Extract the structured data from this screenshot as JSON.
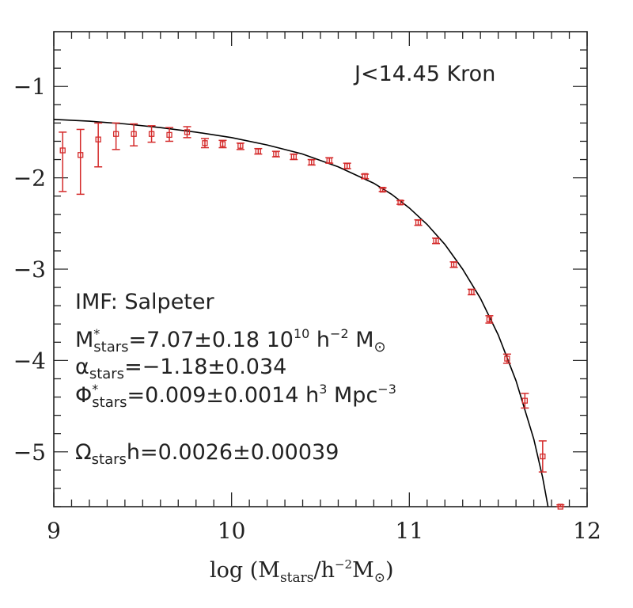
{
  "chart_data": {
    "type": "scatter",
    "title": "J<14.45 Kron",
    "xlim": [
      9,
      12
    ],
    "ylim": [
      -5.6,
      -0.4
    ],
    "x_ticks": [
      9,
      10,
      11,
      12
    ],
    "x_tick_labels": [
      "9",
      "10",
      "11",
      "12"
    ],
    "y_ticks": [
      -1,
      -2,
      -3,
      -4,
      -5
    ],
    "y_tick_labels": [
      "−1",
      "−2",
      "−3",
      "−4",
      "−5"
    ],
    "grid": false,
    "marker_color": "#d42a2a",
    "line_color": "#000000",
    "xlabel": {
      "prefix": "log (M",
      "sub": "stars",
      "mid": "/h",
      "sup": "−2",
      "mid2": "M",
      "sub2": "⊙",
      "suffix": ")"
    },
    "points": [
      {
        "x": 9.05,
        "y": -1.7,
        "lo": -2.15,
        "hi": -1.5
      },
      {
        "x": 9.15,
        "y": -1.75,
        "lo": -2.18,
        "hi": -1.47
      },
      {
        "x": 9.25,
        "y": -1.58,
        "lo": -1.88,
        "hi": -1.4
      },
      {
        "x": 9.35,
        "y": -1.52,
        "lo": -1.69,
        "hi": -1.4
      },
      {
        "x": 9.45,
        "y": -1.52,
        "lo": -1.65,
        "hi": -1.41
      },
      {
        "x": 9.55,
        "y": -1.52,
        "lo": -1.61,
        "hi": -1.43
      },
      {
        "x": 9.65,
        "y": -1.53,
        "lo": -1.6,
        "hi": -1.45
      },
      {
        "x": 9.75,
        "y": -1.5,
        "lo": -1.56,
        "hi": -1.44
      },
      {
        "x": 9.85,
        "y": -1.62,
        "lo": -1.67,
        "hi": -1.57
      },
      {
        "x": 9.95,
        "y": -1.63,
        "lo": -1.67,
        "hi": -1.59
      },
      {
        "x": 10.05,
        "y": -1.65,
        "lo": -1.69,
        "hi": -1.62
      },
      {
        "x": 10.15,
        "y": -1.71,
        "lo": -1.74,
        "hi": -1.68
      },
      {
        "x": 10.25,
        "y": -1.74,
        "lo": -1.77,
        "hi": -1.71
      },
      {
        "x": 10.35,
        "y": -1.77,
        "lo": -1.8,
        "hi": -1.74
      },
      {
        "x": 10.45,
        "y": -1.83,
        "lo": -1.86,
        "hi": -1.8
      },
      {
        "x": 10.55,
        "y": -1.81,
        "lo": -1.84,
        "hi": -1.78
      },
      {
        "x": 10.65,
        "y": -1.87,
        "lo": -1.9,
        "hi": -1.84
      },
      {
        "x": 10.75,
        "y": -1.98,
        "lo": -2.01,
        "hi": -1.96
      },
      {
        "x": 10.85,
        "y": -2.13,
        "lo": -2.15,
        "hi": -2.11
      },
      {
        "x": 10.95,
        "y": -2.27,
        "lo": -2.29,
        "hi": -2.25
      },
      {
        "x": 11.05,
        "y": -2.49,
        "lo": -2.52,
        "hi": -2.46
      },
      {
        "x": 11.15,
        "y": -2.69,
        "lo": -2.72,
        "hi": -2.66
      },
      {
        "x": 11.25,
        "y": -2.95,
        "lo": -2.98,
        "hi": -2.92
      },
      {
        "x": 11.35,
        "y": -3.25,
        "lo": -3.28,
        "hi": -3.22
      },
      {
        "x": 11.45,
        "y": -3.55,
        "lo": -3.59,
        "hi": -3.51
      },
      {
        "x": 11.55,
        "y": -3.98,
        "lo": -4.03,
        "hi": -3.93
      },
      {
        "x": 11.65,
        "y": -4.44,
        "lo": -4.52,
        "hi": -4.36
      },
      {
        "x": 11.75,
        "y": -5.05,
        "lo": -5.22,
        "hi": -4.88
      },
      {
        "x": 11.85,
        "y": -5.6,
        "lo": -5.6,
        "hi": -5.58
      }
    ],
    "fit_curve": {
      "x": [
        9.0,
        9.2,
        9.4,
        9.6,
        9.8,
        10.0,
        10.2,
        10.4,
        10.6,
        10.8,
        10.9,
        11.0,
        11.1,
        11.2,
        11.3,
        11.4,
        11.5,
        11.6,
        11.7,
        11.75,
        11.78
      ],
      "y": [
        -1.36,
        -1.38,
        -1.41,
        -1.45,
        -1.5,
        -1.56,
        -1.64,
        -1.74,
        -1.88,
        -2.06,
        -2.18,
        -2.33,
        -2.51,
        -2.73,
        -3.0,
        -3.32,
        -3.72,
        -4.22,
        -4.86,
        -5.28,
        -5.6
      ]
    }
  },
  "annotations": {
    "imf": "IMF: Salpeter",
    "mstar": {
      "sym": "M",
      "sup": "*",
      "sub": "stars",
      "text": "=7.07±0.18 10",
      "pow": "10",
      "unit1": " h",
      "unit1_sup": "−2",
      "unit2": " M",
      "unit2_sub": "⊙"
    },
    "alpha": {
      "sym": "α",
      "sub": "stars",
      "text": "=−1.18±0.034"
    },
    "phi": {
      "sym": "Φ",
      "sup": "*",
      "sub": "stars",
      "text": "=0.009±0.0014 h",
      "h_sup": "3",
      "unit": " Mpc",
      "unit_sup": "−3"
    },
    "omega": {
      "sym": "Ω",
      "sub": "stars",
      "text": "h=0.0026±0.00039"
    }
  }
}
